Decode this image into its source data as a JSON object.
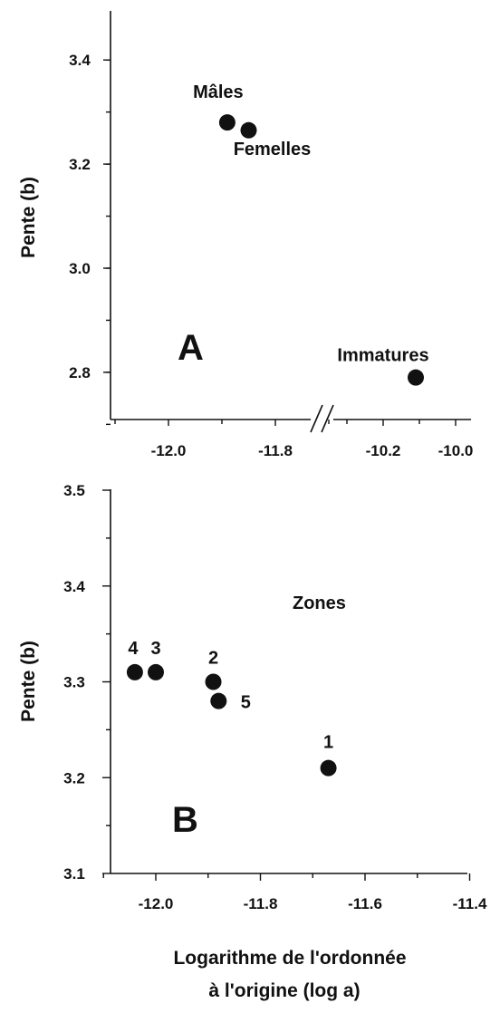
{
  "chart_data": [
    {
      "type": "scatter",
      "panel_label": "A",
      "ylabel": "Pente (b)",
      "xlabel": "",
      "ylim": [
        2.7,
        3.5
      ],
      "y_ticks": [
        "3.4",
        "3.2",
        "3.0",
        "2.8"
      ],
      "x_broken_axis": true,
      "x_ticks_left": [
        "-12.0",
        "-11.8"
      ],
      "x_ticks_right": [
        "-10.2",
        "-10.0"
      ],
      "points": [
        {
          "label": "Mâles",
          "x": -11.89,
          "y": 3.28
        },
        {
          "label": "Femelles",
          "x": -11.85,
          "y": 3.265
        },
        {
          "label": "Immatures",
          "x": -10.11,
          "y": 2.79
        }
      ],
      "grid": false
    },
    {
      "type": "scatter",
      "panel_label": "B",
      "annotation": "Zones",
      "ylabel": "Pente (b)",
      "xlabel": "Logarithme de l'ordonnée à l'origine (log a)",
      "xlabel_line1": "Logarithme de l'ordonnée",
      "xlabel_line2": "à l'origine (log a)",
      "xlim": [
        -12.1,
        -11.4
      ],
      "ylim": [
        3.1,
        3.5
      ],
      "x_ticks": [
        "-12.0",
        "-11.8",
        "-11.6",
        "-11.4"
      ],
      "y_ticks": [
        "3.5",
        "3.4",
        "3.3",
        "3.2",
        "3.1"
      ],
      "points": [
        {
          "label": "1",
          "x": -11.67,
          "y": 3.21
        },
        {
          "label": "2",
          "x": -11.89,
          "y": 3.3
        },
        {
          "label": "3",
          "x": -12.0,
          "y": 3.31
        },
        {
          "label": "4",
          "x": -12.04,
          "y": 3.31
        },
        {
          "label": "5",
          "x": -11.88,
          "y": 3.28
        }
      ],
      "grid": false
    }
  ]
}
